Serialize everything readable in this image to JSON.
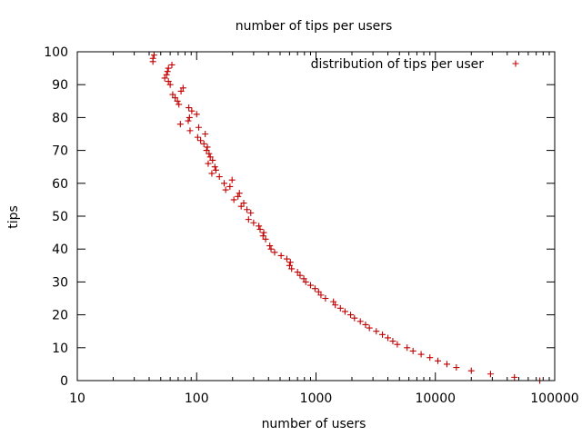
{
  "chart_data": {
    "type": "scatter",
    "title": "number of tips per users",
    "xlabel": "number of users",
    "ylabel": "tips",
    "xscale": "log",
    "xlim": [
      10,
      100000
    ],
    "ylim": [
      0,
      100
    ],
    "xticks": [
      10,
      100,
      1000,
      10000,
      100000
    ],
    "xtick_labels": [
      "10",
      "100",
      "1000",
      "10000",
      "100000"
    ],
    "yticks": [
      0,
      10,
      20,
      30,
      40,
      50,
      60,
      70,
      80,
      90,
      100
    ],
    "ytick_labels": [
      "0",
      "10",
      "20",
      "30",
      "40",
      "50",
      "60",
      "70",
      "80",
      "90",
      "100"
    ],
    "legend_position": "top-right",
    "colors": {
      "series": "#c00000"
    },
    "series": [
      {
        "name": "distribution of tips per user",
        "marker": "+",
        "points": [
          [
            43,
            97
          ],
          [
            43,
            98
          ],
          [
            44,
            99
          ],
          [
            54,
            92
          ],
          [
            56,
            93
          ],
          [
            57,
            94
          ],
          [
            58,
            95
          ],
          [
            58,
            91
          ],
          [
            60,
            90
          ],
          [
            62,
            96
          ],
          [
            63,
            87
          ],
          [
            66,
            86
          ],
          [
            69,
            85
          ],
          [
            71,
            84
          ],
          [
            73,
            78
          ],
          [
            74,
            88
          ],
          [
            77,
            89
          ],
          [
            85,
            79
          ],
          [
            86,
            83
          ],
          [
            87,
            80
          ],
          [
            88,
            76
          ],
          [
            91,
            82
          ],
          [
            100,
            81
          ],
          [
            102,
            74
          ],
          [
            104,
            77
          ],
          [
            108,
            73
          ],
          [
            115,
            72
          ],
          [
            118,
            75
          ],
          [
            121,
            70
          ],
          [
            123,
            71
          ],
          [
            125,
            66
          ],
          [
            127,
            69
          ],
          [
            130,
            68
          ],
          [
            134,
            63
          ],
          [
            136,
            67
          ],
          [
            142,
            65
          ],
          [
            145,
            64
          ],
          [
            155,
            62
          ],
          [
            170,
            60
          ],
          [
            175,
            58
          ],
          [
            190,
            59
          ],
          [
            198,
            61
          ],
          [
            205,
            55
          ],
          [
            222,
            56
          ],
          [
            228,
            57
          ],
          [
            236,
            53
          ],
          [
            248,
            54
          ],
          [
            264,
            52
          ],
          [
            272,
            49
          ],
          [
            284,
            51
          ],
          [
            300,
            48
          ],
          [
            332,
            47
          ],
          [
            340,
            46
          ],
          [
            360,
            44
          ],
          [
            365,
            45
          ],
          [
            378,
            43
          ],
          [
            410,
            41
          ],
          [
            420,
            40
          ],
          [
            450,
            39
          ],
          [
            510,
            38
          ],
          [
            570,
            37
          ],
          [
            600,
            35
          ],
          [
            610,
            36
          ],
          [
            625,
            34
          ],
          [
            700,
            33
          ],
          [
            735,
            32
          ],
          [
            790,
            31
          ],
          [
            820,
            30
          ],
          [
            900,
            29
          ],
          [
            980,
            28
          ],
          [
            1050,
            27
          ],
          [
            1100,
            26
          ],
          [
            1200,
            25
          ],
          [
            1400,
            24
          ],
          [
            1450,
            23
          ],
          [
            1600,
            22
          ],
          [
            1750,
            21
          ],
          [
            1950,
            20
          ],
          [
            2100,
            19
          ],
          [
            2350,
            18
          ],
          [
            2600,
            17
          ],
          [
            2800,
            16
          ],
          [
            3200,
            15
          ],
          [
            3600,
            14
          ],
          [
            4000,
            13
          ],
          [
            4400,
            12
          ],
          [
            4800,
            11
          ],
          [
            5800,
            10
          ],
          [
            6500,
            9
          ],
          [
            7600,
            8
          ],
          [
            9000,
            7
          ],
          [
            10500,
            6
          ],
          [
            12500,
            5
          ],
          [
            15000,
            4
          ],
          [
            20000,
            3
          ],
          [
            29000,
            2
          ],
          [
            46000,
            1
          ],
          [
            75000,
            0
          ]
        ]
      }
    ]
  }
}
